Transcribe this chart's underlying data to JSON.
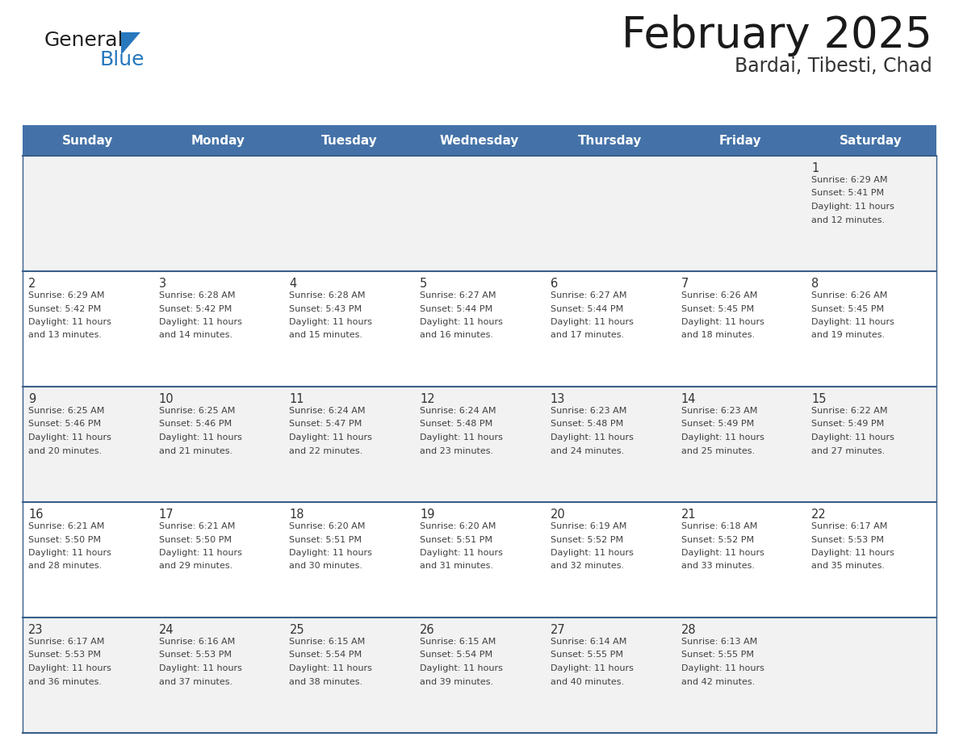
{
  "title": "February 2025",
  "subtitle": "Bardai, Tibesti, Chad",
  "header_bg": "#4472A8",
  "header_text_color": "#FFFFFF",
  "days_of_week": [
    "Sunday",
    "Monday",
    "Tuesday",
    "Wednesday",
    "Thursday",
    "Friday",
    "Saturday"
  ],
  "row_bg_even": "#F2F2F2",
  "row_bg_odd": "#FFFFFF",
  "cell_border_color": "#3A5F8A",
  "text_color": "#404040",
  "day_num_color": "#333333",
  "calendar": [
    [
      null,
      null,
      null,
      null,
      null,
      null,
      {
        "day": 1,
        "sunrise": "6:29 AM",
        "sunset": "5:41 PM",
        "daylight": "11 hours",
        "daylight2": "and 12 minutes."
      }
    ],
    [
      {
        "day": 2,
        "sunrise": "6:29 AM",
        "sunset": "5:42 PM",
        "daylight": "11 hours",
        "daylight2": "and 13 minutes."
      },
      {
        "day": 3,
        "sunrise": "6:28 AM",
        "sunset": "5:42 PM",
        "daylight": "11 hours",
        "daylight2": "and 14 minutes."
      },
      {
        "day": 4,
        "sunrise": "6:28 AM",
        "sunset": "5:43 PM",
        "daylight": "11 hours",
        "daylight2": "and 15 minutes."
      },
      {
        "day": 5,
        "sunrise": "6:27 AM",
        "sunset": "5:44 PM",
        "daylight": "11 hours",
        "daylight2": "and 16 minutes."
      },
      {
        "day": 6,
        "sunrise": "6:27 AM",
        "sunset": "5:44 PM",
        "daylight": "11 hours",
        "daylight2": "and 17 minutes."
      },
      {
        "day": 7,
        "sunrise": "6:26 AM",
        "sunset": "5:45 PM",
        "daylight": "11 hours",
        "daylight2": "and 18 minutes."
      },
      {
        "day": 8,
        "sunrise": "6:26 AM",
        "sunset": "5:45 PM",
        "daylight": "11 hours",
        "daylight2": "and 19 minutes."
      }
    ],
    [
      {
        "day": 9,
        "sunrise": "6:25 AM",
        "sunset": "5:46 PM",
        "daylight": "11 hours",
        "daylight2": "and 20 minutes."
      },
      {
        "day": 10,
        "sunrise": "6:25 AM",
        "sunset": "5:46 PM",
        "daylight": "11 hours",
        "daylight2": "and 21 minutes."
      },
      {
        "day": 11,
        "sunrise": "6:24 AM",
        "sunset": "5:47 PM",
        "daylight": "11 hours",
        "daylight2": "and 22 minutes."
      },
      {
        "day": 12,
        "sunrise": "6:24 AM",
        "sunset": "5:48 PM",
        "daylight": "11 hours",
        "daylight2": "and 23 minutes."
      },
      {
        "day": 13,
        "sunrise": "6:23 AM",
        "sunset": "5:48 PM",
        "daylight": "11 hours",
        "daylight2": "and 24 minutes."
      },
      {
        "day": 14,
        "sunrise": "6:23 AM",
        "sunset": "5:49 PM",
        "daylight": "11 hours",
        "daylight2": "and 25 minutes."
      },
      {
        "day": 15,
        "sunrise": "6:22 AM",
        "sunset": "5:49 PM",
        "daylight": "11 hours",
        "daylight2": "and 27 minutes."
      }
    ],
    [
      {
        "day": 16,
        "sunrise": "6:21 AM",
        "sunset": "5:50 PM",
        "daylight": "11 hours",
        "daylight2": "and 28 minutes."
      },
      {
        "day": 17,
        "sunrise": "6:21 AM",
        "sunset": "5:50 PM",
        "daylight": "11 hours",
        "daylight2": "and 29 minutes."
      },
      {
        "day": 18,
        "sunrise": "6:20 AM",
        "sunset": "5:51 PM",
        "daylight": "11 hours",
        "daylight2": "and 30 minutes."
      },
      {
        "day": 19,
        "sunrise": "6:20 AM",
        "sunset": "5:51 PM",
        "daylight": "11 hours",
        "daylight2": "and 31 minutes."
      },
      {
        "day": 20,
        "sunrise": "6:19 AM",
        "sunset": "5:52 PM",
        "daylight": "11 hours",
        "daylight2": "and 32 minutes."
      },
      {
        "day": 21,
        "sunrise": "6:18 AM",
        "sunset": "5:52 PM",
        "daylight": "11 hours",
        "daylight2": "and 33 minutes."
      },
      {
        "day": 22,
        "sunrise": "6:17 AM",
        "sunset": "5:53 PM",
        "daylight": "11 hours",
        "daylight2": "and 35 minutes."
      }
    ],
    [
      {
        "day": 23,
        "sunrise": "6:17 AM",
        "sunset": "5:53 PM",
        "daylight": "11 hours",
        "daylight2": "and 36 minutes."
      },
      {
        "day": 24,
        "sunrise": "6:16 AM",
        "sunset": "5:53 PM",
        "daylight": "11 hours",
        "daylight2": "and 37 minutes."
      },
      {
        "day": 25,
        "sunrise": "6:15 AM",
        "sunset": "5:54 PM",
        "daylight": "11 hours",
        "daylight2": "and 38 minutes."
      },
      {
        "day": 26,
        "sunrise": "6:15 AM",
        "sunset": "5:54 PM",
        "daylight": "11 hours",
        "daylight2": "and 39 minutes."
      },
      {
        "day": 27,
        "sunrise": "6:14 AM",
        "sunset": "5:55 PM",
        "daylight": "11 hours",
        "daylight2": "and 40 minutes."
      },
      {
        "day": 28,
        "sunrise": "6:13 AM",
        "sunset": "5:55 PM",
        "daylight": "11 hours",
        "daylight2": "and 42 minutes."
      },
      null
    ]
  ],
  "logo_text1": "General",
  "logo_text2": "Blue",
  "logo_text1_color": "#222222",
  "logo_text2_color": "#2878BE",
  "logo_triangle_color": "#2878BE",
  "title_color": "#1a1a1a",
  "subtitle_color": "#333333"
}
